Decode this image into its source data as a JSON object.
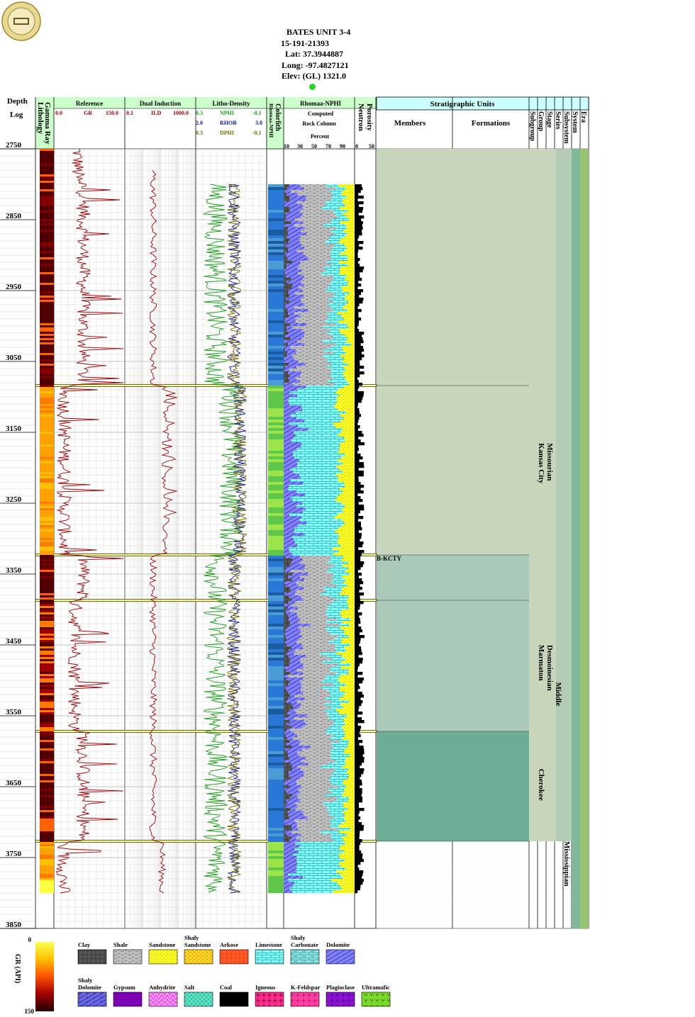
{
  "header": {
    "lines": [
      "BATES UNIT 3-4",
      "15-191-21393",
      "Lat: 37.3944887",
      "Long: -97.4827121",
      "Elev: (GL) 1321.0"
    ]
  },
  "columns": {
    "depth_label": "Depth",
    "log_label": "Log",
    "lithology": "Lithology",
    "gamma_ray": "Gamma Ray",
    "reference": {
      "title": "Reference",
      "curve": "GR",
      "min": "0.0",
      "max": "150.0"
    },
    "dual_induction": {
      "title": "Dual Induction",
      "curve": "ILD",
      "min": "0.1",
      "max": "1000.0"
    },
    "litho_density": {
      "title": "Litho-Density",
      "curves": [
        {
          "name": "NPHI",
          "min": "0.3",
          "max": "-0.1",
          "color": "#1aa01a"
        },
        {
          "name": "RHOB",
          "min": "2.0",
          "max": "3.0",
          "color": "#0a1aa0"
        },
        {
          "name": "DPHI",
          "min": "0.3",
          "max": "-0.1",
          "color": "#7a6a00"
        }
      ]
    },
    "colorlith": "Colorlith",
    "rhomaa_nphi_vert": "Rhomaa-NPHI",
    "rock_column": {
      "title": "Rhomaa-NPHI",
      "lines": [
        "Computed",
        "Rock Column",
        "Percent"
      ],
      "ticks": [
        "10",
        "30",
        "50",
        "70",
        "90"
      ]
    },
    "porosity": {
      "title": "Porosity",
      "sub": "Neutron",
      "ticks": [
        "0",
        "50"
      ]
    },
    "strat": {
      "title": "Stratigraphic Units",
      "members": "Members",
      "formations": "Formations",
      "ranks": [
        "Subgroup",
        "Group",
        "Stage",
        "Series",
        "Subsystem",
        "System",
        "Era"
      ]
    }
  },
  "chart_data": {
    "type": "well-log",
    "depth_range": [
      2750,
      3850
    ],
    "depth_ticks": [
      "2750",
      "2850",
      "2950",
      "3050",
      "3150",
      "3250",
      "3350",
      "3450",
      "3550",
      "3650",
      "3750",
      "3850"
    ],
    "tops": [
      {
        "name": "B-KCTY",
        "depth": 3323
      }
    ],
    "zone_boundaries": [
      3084,
      3323,
      3387,
      3572,
      3727
    ],
    "strat_units": [
      {
        "rank": "Group",
        "name": "Kansas City",
        "top": 3084,
        "base": 3323
      },
      {
        "rank": "Stage",
        "name": "Missourian",
        "top": 3084,
        "base": 3323
      },
      {
        "rank": "Group",
        "name": "Marmaton",
        "top": 3387,
        "base": 3572
      },
      {
        "rank": "Stage",
        "name": "Desmoinesian",
        "top": 3387,
        "base": 3572
      },
      {
        "rank": "Group",
        "name": "Cherokee",
        "top": 3572,
        "base": 3727
      },
      {
        "rank": "Series",
        "name": "Middle",
        "top": 3387,
        "base": 3727
      },
      {
        "rank": "Subsystem",
        "name": "Mississippian",
        "top": 3727,
        "base": 3850
      }
    ],
    "gr_scale": {
      "label": "GR (API)",
      "min": "0",
      "max": "150"
    },
    "legend": [
      {
        "label": "Clay",
        "color": "#555555"
      },
      {
        "label": "Shale",
        "color": "#bdbdbd"
      },
      {
        "label": "Sandstone",
        "color": "#ffff22"
      },
      {
        "label": "Shaly Sandstone",
        "color": "#ffd21e"
      },
      {
        "label": "Arkose",
        "color": "#ff5522"
      },
      {
        "label": "Limestone",
        "color": "#7dffff"
      },
      {
        "label": "Shaly Carbonate",
        "color": "#8ee6e6"
      },
      {
        "label": "Dolomite",
        "color": "#8080ff"
      },
      {
        "label": "Shaly Dolomite",
        "color": "#6a6ae6"
      },
      {
        "label": "Gypsum",
        "color": "#8a00c8"
      },
      {
        "label": "Anhydrite",
        "color": "#ff8cff"
      },
      {
        "label": "Salt",
        "color": "#5ce6c8"
      },
      {
        "label": "Coal",
        "color": "#000000"
      },
      {
        "label": "Igneous",
        "color": "#ff2e8c"
      },
      {
        "label": "K-Feldspar",
        "color": "#ff3fa0"
      },
      {
        "label": "Plagioclase",
        "color": "#8a10d6"
      },
      {
        "label": "Ultramafic",
        "color": "#7ad82a"
      }
    ]
  }
}
